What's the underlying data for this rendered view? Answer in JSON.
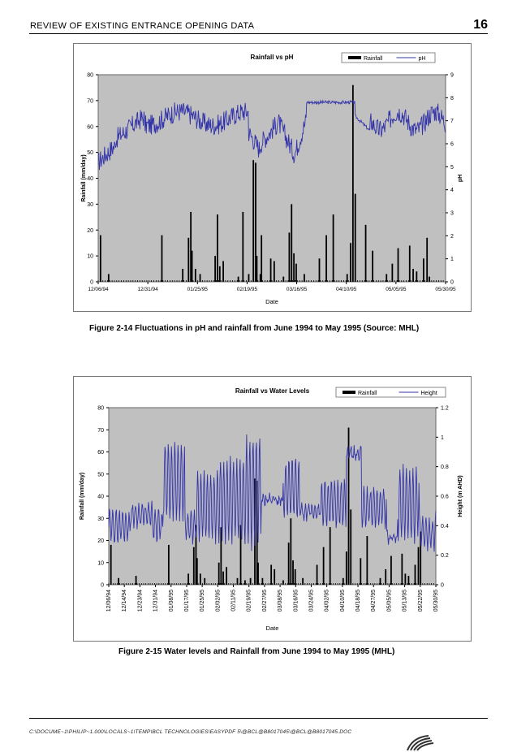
{
  "header": {
    "title": "REVIEW OF EXISTING ENTRANCE OPENING DATA",
    "page_number": "16"
  },
  "figures": [
    {
      "caption": "Figure 2-14   Fluctuations in pH and rainfall from June 1994 to May 1995 (Source: MHL)"
    },
    {
      "caption": "Figure 2-15   Water levels and Rainfall from June 1994 to May 1995 (MHL)"
    }
  ],
  "footer": {
    "path": "C:\\DOCUME~1\\PHILIP~1.000\\LOCALS~1\\TEMP\\BCL TECHNOLOGIES\\EASYPDF 5\\@BCL@B8017045\\@BCL@B8017045.DOC"
  },
  "chart_data": [
    {
      "type": "bar+line",
      "title": "Rainfall vs pH",
      "ylabel": "Rainfall (mm/day)",
      "y2label": "pH",
      "xlabel": "Date",
      "ylim": [
        0,
        80
      ],
      "y2lim": [
        0,
        9
      ],
      "yticks": [
        "0",
        "10",
        "20",
        "30",
        "40",
        "50",
        "60",
        "70",
        "80"
      ],
      "y2ticks": [
        "0",
        "1",
        "2",
        "3",
        "4",
        "5",
        "6",
        "7",
        "8",
        "9"
      ],
      "x_ticks": [
        "12/06/94",
        "12/31/94",
        "01/25/95",
        "02/19/95",
        "03/16/95",
        "04/10/95",
        "05/05/95",
        "05/30/95"
      ],
      "legend": {
        "position": "top-right",
        "entries": [
          "Rainfall",
          "pH"
        ]
      },
      "colors": {
        "plot_bg": "#c0c0c0",
        "bar": "#000000",
        "line": "#3333aa"
      },
      "rainfall_events": [
        {
          "day": 2,
          "value": 18
        },
        {
          "day": 9,
          "value": 3
        },
        {
          "day": 55,
          "value": 18
        },
        {
          "day": 73,
          "value": 5
        },
        {
          "day": 78,
          "value": 17
        },
        {
          "day": 80,
          "value": 27
        },
        {
          "day": 81,
          "value": 12
        },
        {
          "day": 84,
          "value": 5
        },
        {
          "day": 88,
          "value": 3
        },
        {
          "day": 101,
          "value": 10
        },
        {
          "day": 103,
          "value": 26
        },
        {
          "day": 105,
          "value": 6
        },
        {
          "day": 108,
          "value": 8
        },
        {
          "day": 121,
          "value": 2
        },
        {
          "day": 125,
          "value": 27
        },
        {
          "day": 130,
          "value": 3
        },
        {
          "day": 134,
          "value": 47
        },
        {
          "day": 136,
          "value": 46
        },
        {
          "day": 137,
          "value": 10
        },
        {
          "day": 140,
          "value": 3
        },
        {
          "day": 141,
          "value": 18
        },
        {
          "day": 149,
          "value": 9
        },
        {
          "day": 152,
          "value": 8
        },
        {
          "day": 160,
          "value": 2
        },
        {
          "day": 165,
          "value": 19
        },
        {
          "day": 167,
          "value": 30
        },
        {
          "day": 169,
          "value": 11
        },
        {
          "day": 171,
          "value": 7
        },
        {
          "day": 178,
          "value": 3
        },
        {
          "day": 191,
          "value": 9
        },
        {
          "day": 197,
          "value": 18
        },
        {
          "day": 203,
          "value": 26
        },
        {
          "day": 215,
          "value": 3
        },
        {
          "day": 218,
          "value": 15
        },
        {
          "day": 220,
          "value": 76
        },
        {
          "day": 222,
          "value": 34
        },
        {
          "day": 231,
          "value": 22
        },
        {
          "day": 237,
          "value": 12
        },
        {
          "day": 249,
          "value": 3
        },
        {
          "day": 254,
          "value": 7
        },
        {
          "day": 259,
          "value": 13
        },
        {
          "day": 269,
          "value": 14
        },
        {
          "day": 272,
          "value": 5
        },
        {
          "day": 275,
          "value": 4
        },
        {
          "day": 281,
          "value": 9
        },
        {
          "day": 284,
          "value": 17
        },
        {
          "day": 286,
          "value": 2
        }
      ]
    },
    {
      "type": "bar+line",
      "title": "Rainfall vs Water Levels",
      "ylabel": "Rainfall (mm/day)",
      "y2label": "Height (m AHD)",
      "xlabel": "Date",
      "ylim": [
        0,
        80
      ],
      "y2lim": [
        0,
        1.2
      ],
      "yticks": [
        "0",
        "10",
        "20",
        "30",
        "40",
        "50",
        "60",
        "70",
        "80"
      ],
      "y2ticks": [
        "0",
        "0.2",
        "0.4",
        "0.6",
        "0.8",
        "1",
        "1.2"
      ],
      "x_ticks": [
        "12/06/94",
        "12/14/94",
        "12/23/94",
        "12/31/94",
        "01/08/95",
        "01/17/95",
        "01/25/95",
        "02/02/95",
        "02/11/95",
        "02/19/95",
        "02/27/95",
        "03/08/95",
        "03/16/95",
        "03/24/95",
        "04/02/95",
        "04/10/95",
        "04/18/95",
        "04/27/95",
        "05/05/95",
        "05/13/95",
        "05/22/95",
        "05/30/95"
      ],
      "legend": {
        "position": "top-right",
        "entries": [
          "Rainfall",
          "Height"
        ]
      },
      "colors": {
        "plot_bg": "#c0c0c0",
        "bar": "#000000",
        "line": "#3333aa"
      },
      "rainfall_events": [
        {
          "day": 2,
          "value": 18
        },
        {
          "day": 9,
          "value": 3
        },
        {
          "day": 25,
          "value": 4
        },
        {
          "day": 55,
          "value": 18
        },
        {
          "day": 73,
          "value": 5
        },
        {
          "day": 78,
          "value": 17
        },
        {
          "day": 80,
          "value": 27
        },
        {
          "day": 81,
          "value": 12
        },
        {
          "day": 84,
          "value": 5
        },
        {
          "day": 88,
          "value": 3
        },
        {
          "day": 101,
          "value": 10
        },
        {
          "day": 103,
          "value": 26
        },
        {
          "day": 105,
          "value": 6
        },
        {
          "day": 108,
          "value": 8
        },
        {
          "day": 118,
          "value": 3
        },
        {
          "day": 121,
          "value": 27
        },
        {
          "day": 125,
          "value": 2
        },
        {
          "day": 130,
          "value": 3
        },
        {
          "day": 134,
          "value": 48
        },
        {
          "day": 136,
          "value": 47
        },
        {
          "day": 137,
          "value": 10
        },
        {
          "day": 141,
          "value": 3
        },
        {
          "day": 149,
          "value": 9
        },
        {
          "day": 152,
          "value": 7
        },
        {
          "day": 160,
          "value": 2
        },
        {
          "day": 165,
          "value": 19
        },
        {
          "day": 167,
          "value": 30
        },
        {
          "day": 169,
          "value": 11
        },
        {
          "day": 171,
          "value": 7
        },
        {
          "day": 178,
          "value": 3
        },
        {
          "day": 191,
          "value": 9
        },
        {
          "day": 197,
          "value": 17
        },
        {
          "day": 203,
          "value": 26
        },
        {
          "day": 215,
          "value": 3
        },
        {
          "day": 218,
          "value": 15
        },
        {
          "day": 220,
          "value": 71
        },
        {
          "day": 222,
          "value": 34
        },
        {
          "day": 231,
          "value": 12
        },
        {
          "day": 237,
          "value": 22
        },
        {
          "day": 249,
          "value": 3
        },
        {
          "day": 254,
          "value": 7
        },
        {
          "day": 259,
          "value": 13
        },
        {
          "day": 269,
          "value": 14
        },
        {
          "day": 272,
          "value": 5
        },
        {
          "day": 275,
          "value": 4
        },
        {
          "day": 281,
          "value": 9
        },
        {
          "day": 284,
          "value": 17
        },
        {
          "day": 286,
          "value": 24
        }
      ]
    }
  ]
}
